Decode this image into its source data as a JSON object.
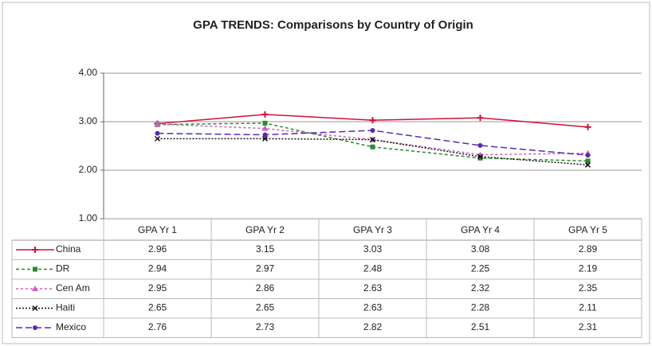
{
  "chart_data": {
    "type": "line",
    "title": "GPA TRENDS: Comparisons by Country of Origin",
    "categories": [
      "GPA Yr 1",
      "GPA Yr 2",
      "GPA Yr 3",
      "GPA Yr 4",
      "GPA Yr 5"
    ],
    "series": [
      {
        "name": "China",
        "color": "#d0103a",
        "values": [
          2.96,
          3.15,
          3.03,
          3.08,
          2.89
        ]
      },
      {
        "name": "DR",
        "color": "#2a8a2a",
        "values": [
          2.94,
          2.97,
          2.48,
          2.25,
          2.19
        ]
      },
      {
        "name": "Cen Am",
        "color": "#d060c0",
        "values": [
          2.95,
          2.86,
          2.63,
          2.32,
          2.35
        ]
      },
      {
        "name": "Haiti",
        "color": "#111111",
        "values": [
          2.65,
          2.65,
          2.63,
          2.28,
          2.11
        ]
      },
      {
        "name": "Mexico",
        "color": "#5a2ab0",
        "values": [
          2.76,
          2.73,
          2.82,
          2.51,
          2.31
        ]
      }
    ],
    "ylim": [
      1,
      4
    ],
    "yticks": [
      {
        "value": 1,
        "label": "1.00"
      },
      {
        "value": 2,
        "label": "2.00"
      },
      {
        "value": 3,
        "label": "3.00"
      },
      {
        "value": 4,
        "label": "4.00"
      }
    ],
    "grid": true
  }
}
